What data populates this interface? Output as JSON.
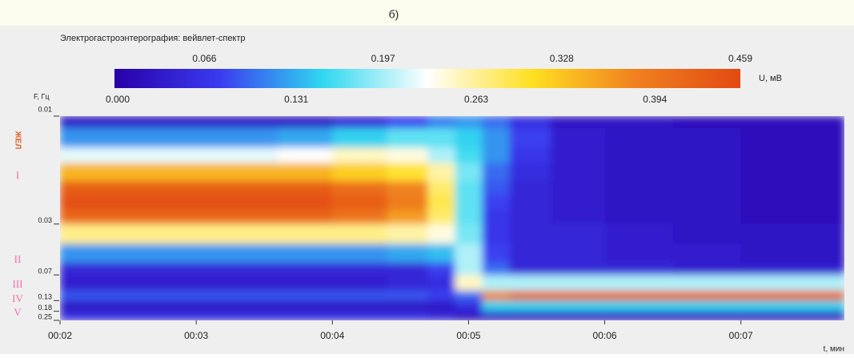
{
  "figure_label": "б)",
  "chart_data": {
    "type": "heatmap",
    "title": "Электрогастроэнтерография: вейвлет-спектр",
    "x_label": "t, мин",
    "y_label": "F, Гц",
    "band_labels": [
      "ЖЕЛ",
      "I",
      "II",
      "III",
      "IV",
      "V"
    ],
    "xlim": [
      2,
      7.76
    ],
    "xticks": [
      {
        "value": 2,
        "label": "00:02"
      },
      {
        "value": 3,
        "label": "00:03"
      },
      {
        "value": 4,
        "label": "00:04"
      },
      {
        "value": 5,
        "label": "00:05"
      },
      {
        "value": 6,
        "label": "00:06"
      },
      {
        "value": 7,
        "label": "00:07"
      }
    ],
    "ylim": [
      0.01,
      0.25
    ],
    "yscale": "inverse-sqrt",
    "yticks": [
      0.01,
      0.03,
      0.07,
      0.13,
      0.18,
      0.25
    ],
    "x": [
      2,
      2.4,
      2.8,
      3.2,
      3.6,
      4.0,
      4.4,
      4.7,
      4.9,
      5.1,
      5.3,
      5.6,
      6.0,
      6.5,
      7.0,
      7.4
    ],
    "y": [
      0.01,
      0.011,
      0.013,
      0.015,
      0.018,
      0.021,
      0.025,
      0.03,
      0.04,
      0.055,
      0.07,
      0.1,
      0.13,
      0.18
    ],
    "z": [
      [
        0.03,
        0.03,
        0.03,
        0.03,
        0.03,
        0.05,
        0.08,
        0.11,
        0.12,
        0.1,
        0.06,
        0.03,
        0.03,
        0.02,
        0.02,
        0.02
      ],
      [
        0.12,
        0.12,
        0.12,
        0.12,
        0.13,
        0.15,
        0.17,
        0.17,
        0.15,
        0.12,
        0.08,
        0.04,
        0.03,
        0.03,
        0.02,
        0.02
      ],
      [
        0.22,
        0.22,
        0.22,
        0.22,
        0.23,
        0.25,
        0.24,
        0.2,
        0.16,
        0.12,
        0.07,
        0.04,
        0.03,
        0.03,
        0.02,
        0.02
      ],
      [
        0.34,
        0.34,
        0.34,
        0.34,
        0.34,
        0.32,
        0.3,
        0.26,
        0.18,
        0.1,
        0.06,
        0.04,
        0.03,
        0.03,
        0.02,
        0.02
      ],
      [
        0.43,
        0.43,
        0.43,
        0.43,
        0.43,
        0.41,
        0.38,
        0.28,
        0.17,
        0.09,
        0.05,
        0.04,
        0.03,
        0.03,
        0.02,
        0.02
      ],
      [
        0.45,
        0.45,
        0.45,
        0.45,
        0.45,
        0.43,
        0.39,
        0.29,
        0.17,
        0.08,
        0.05,
        0.04,
        0.03,
        0.03,
        0.02,
        0.02
      ],
      [
        0.42,
        0.42,
        0.42,
        0.42,
        0.42,
        0.4,
        0.36,
        0.28,
        0.17,
        0.07,
        0.05,
        0.04,
        0.03,
        0.03,
        0.02,
        0.02
      ],
      [
        0.27,
        0.27,
        0.27,
        0.27,
        0.27,
        0.27,
        0.26,
        0.24,
        0.18,
        0.07,
        0.05,
        0.05,
        0.04,
        0.03,
        0.03,
        0.03
      ],
      [
        0.12,
        0.12,
        0.12,
        0.12,
        0.12,
        0.12,
        0.13,
        0.14,
        0.2,
        0.08,
        0.05,
        0.05,
        0.04,
        0.04,
        0.03,
        0.03
      ],
      [
        0.05,
        0.05,
        0.05,
        0.05,
        0.05,
        0.05,
        0.05,
        0.08,
        0.2,
        0.1,
        0.05,
        0.05,
        0.05,
        0.04,
        0.04,
        0.04
      ],
      [
        0.04,
        0.04,
        0.04,
        0.04,
        0.04,
        0.04,
        0.05,
        0.06,
        0.25,
        0.2,
        0.2,
        0.2,
        0.2,
        0.2,
        0.2,
        0.2
      ],
      [
        0.09,
        0.09,
        0.09,
        0.09,
        0.09,
        0.09,
        0.09,
        0.08,
        0.1,
        0.38,
        0.42,
        0.42,
        0.42,
        0.42,
        0.42,
        0.42
      ],
      [
        0.03,
        0.03,
        0.03,
        0.03,
        0.03,
        0.03,
        0.03,
        0.03,
        0.06,
        0.15,
        0.15,
        0.15,
        0.15,
        0.15,
        0.15,
        0.15
      ],
      [
        0.06,
        0.06,
        0.06,
        0.06,
        0.06,
        0.06,
        0.06,
        0.05,
        0.03,
        0.03,
        0.03,
        0.03,
        0.03,
        0.03,
        0.03,
        0.03
      ]
    ],
    "colorbar": {
      "label": "U, мВ",
      "lim": [
        0,
        0.459
      ],
      "colors": [
        "#2800a8",
        "#3a3af0",
        "#30d8f0",
        "#ffffff",
        "#ffe020",
        "#f08020",
        "#e24a12"
      ],
      "ticks_top": [
        0.066,
        0.197,
        0.328,
        0.459
      ],
      "ticks_bottom": [
        {
          "value": 0,
          "label": "0.000"
        },
        0.131,
        0.263,
        0.394
      ]
    }
  }
}
